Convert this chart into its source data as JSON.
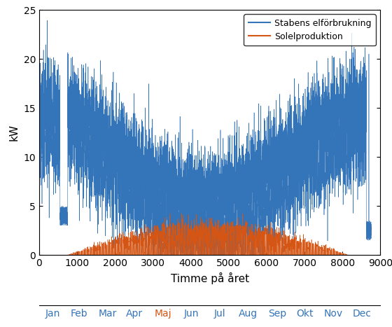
{
  "xlabel": "Timme på året",
  "ylabel": "kW",
  "xlim": [
    0,
    9000
  ],
  "ylim": [
    0,
    25
  ],
  "yticks": [
    0,
    5,
    10,
    15,
    20,
    25
  ],
  "xticks": [
    0,
    1000,
    2000,
    3000,
    4000,
    5000,
    6000,
    7000,
    8000,
    9000
  ],
  "month_labels": [
    "Jan",
    "Feb",
    "Mar",
    "Apr",
    "Maj",
    "Jun",
    "Jul",
    "Aug",
    "Sep",
    "Okt",
    "Nov",
    "Dec"
  ],
  "month_positions": [
    360,
    1056,
    1800,
    2520,
    3276,
    4008,
    4764,
    5520,
    6276,
    7008,
    7764,
    8520
  ],
  "blue_color": "#3474b8",
  "orange_color": "#d45514",
  "legend_label_blue": "Stabens elförbrukning",
  "legend_label_orange": "Solelproduktion",
  "n_hours": 8760,
  "seed": 42
}
